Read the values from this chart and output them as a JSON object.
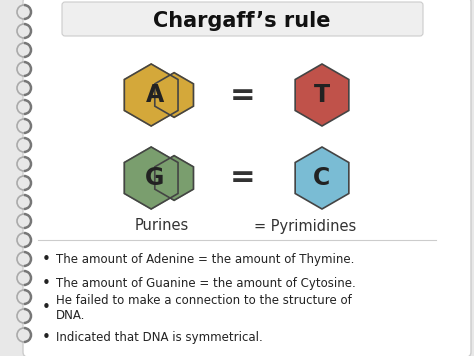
{
  "title": "Chargaff’s rule",
  "background_color": "#e8e8e8",
  "panel_color": "#ffffff",
  "title_fontsize": 15,
  "bullet_points": [
    "The amount of Adenine = the amount of Thymine.",
    "The amount of Guanine = the amount of Cytosine.",
    "He failed to make a connection to the structure of\nDNA.",
    "Indicated that DNA is symmetrical."
  ],
  "hexagon_A_color": "#d4a83a",
  "hexagon_T_color": "#c0524a",
  "hexagon_G_color": "#7a9e6e",
  "hexagon_C_color": "#7abcd4",
  "hexagon_A_label": "A",
  "hexagon_T_label": "T",
  "hexagon_G_label": "G",
  "hexagon_C_label": "C",
  "purines_label": "Purines",
  "pyrimidines_label": "= Pyrimidines",
  "equals_sign": "="
}
